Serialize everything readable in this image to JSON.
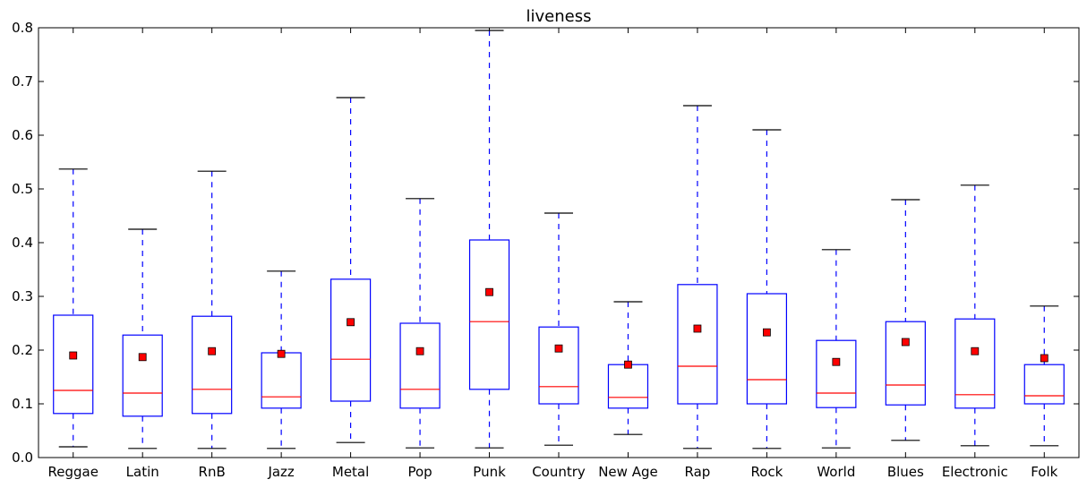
{
  "chart_data": {
    "type": "boxplot",
    "title": "liveness",
    "xlabel": "",
    "ylabel": "",
    "ylim": [
      0,
      0.8
    ],
    "yticks": [
      "0.0",
      "0.1",
      "0.2",
      "0.3",
      "0.4",
      "0.5",
      "0.6",
      "0.7",
      "0.8"
    ],
    "grid": false,
    "categories": [
      "Reggae",
      "Latin",
      "RnB",
      "Jazz",
      "Metal",
      "Pop",
      "Punk",
      "Country",
      "New Age",
      "Rap",
      "Rock",
      "World",
      "Blues",
      "Electronic",
      "Folk"
    ],
    "boxes": [
      {
        "whislo": 0.02,
        "q1": 0.082,
        "med": 0.125,
        "q3": 0.265,
        "whishi": 0.537,
        "mean": 0.19
      },
      {
        "whislo": 0.017,
        "q1": 0.077,
        "med": 0.12,
        "q3": 0.228,
        "whishi": 0.425,
        "mean": 0.187
      },
      {
        "whislo": 0.017,
        "q1": 0.082,
        "med": 0.127,
        "q3": 0.263,
        "whishi": 0.533,
        "mean": 0.198
      },
      {
        "whislo": 0.017,
        "q1": 0.092,
        "med": 0.113,
        "q3": 0.195,
        "whishi": 0.347,
        "mean": 0.193
      },
      {
        "whislo": 0.028,
        "q1": 0.105,
        "med": 0.183,
        "q3": 0.332,
        "whishi": 0.67,
        "mean": 0.252
      },
      {
        "whislo": 0.018,
        "q1": 0.092,
        "med": 0.127,
        "q3": 0.25,
        "whishi": 0.482,
        "mean": 0.198
      },
      {
        "whislo": 0.018,
        "q1": 0.127,
        "med": 0.253,
        "q3": 0.405,
        "whishi": 0.795,
        "mean": 0.308
      },
      {
        "whislo": 0.023,
        "q1": 0.1,
        "med": 0.132,
        "q3": 0.243,
        "whishi": 0.455,
        "mean": 0.203
      },
      {
        "whislo": 0.043,
        "q1": 0.092,
        "med": 0.112,
        "q3": 0.173,
        "whishi": 0.29,
        "mean": 0.173
      },
      {
        "whislo": 0.017,
        "q1": 0.1,
        "med": 0.17,
        "q3": 0.322,
        "whishi": 0.655,
        "mean": 0.24
      },
      {
        "whislo": 0.017,
        "q1": 0.1,
        "med": 0.145,
        "q3": 0.305,
        "whishi": 0.61,
        "mean": 0.233
      },
      {
        "whislo": 0.018,
        "q1": 0.093,
        "med": 0.12,
        "q3": 0.218,
        "whishi": 0.387,
        "mean": 0.178
      },
      {
        "whislo": 0.032,
        "q1": 0.098,
        "med": 0.135,
        "q3": 0.253,
        "whishi": 0.48,
        "mean": 0.215
      },
      {
        "whislo": 0.022,
        "q1": 0.092,
        "med": 0.117,
        "q3": 0.258,
        "whishi": 0.507,
        "mean": 0.198
      },
      {
        "whislo": 0.022,
        "q1": 0.1,
        "med": 0.115,
        "q3": 0.173,
        "whishi": 0.282,
        "mean": 0.185
      }
    ],
    "colors": {
      "box": "#0000ff",
      "whisker": "#0000ff",
      "cap": "#000000",
      "median": "#ff0000",
      "mean_marker": "#ff0000",
      "mean_marker_edge": "#000000",
      "axes": "#000000"
    }
  }
}
